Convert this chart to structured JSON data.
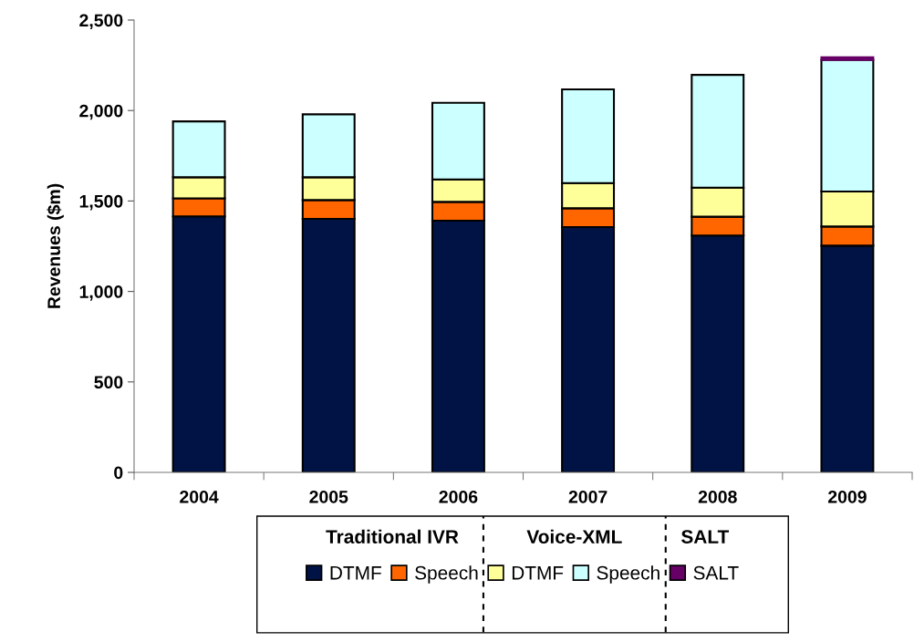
{
  "chart_data": {
    "type": "bar",
    "stacked": true,
    "ylabel": "Revenues ($m)",
    "categories": [
      "2004",
      "2005",
      "2006",
      "2007",
      "2008",
      "2009"
    ],
    "series": [
      {
        "name": "DTMF",
        "color": "#001344",
        "values": [
          1415,
          1401,
          1391,
          1356,
          1309,
          1253
        ]
      },
      {
        "name": "Speech",
        "color": "#ff6600",
        "values": [
          100,
          104,
          104,
          104,
          104,
          106
        ]
      },
      {
        "name": "DTMF",
        "color": "#ffff99",
        "values": [
          116,
          126,
          124,
          139,
          161,
          193
        ]
      },
      {
        "name": "Speech",
        "color": "#ccffff",
        "values": [
          309,
          348,
          424,
          518,
          623,
          728
        ]
      },
      {
        "name": "SALT",
        "color": "#660066",
        "values": [
          0,
          0,
          0,
          0,
          0,
          14
        ]
      }
    ],
    "ylim": [
      0,
      2500
    ],
    "yticks": [
      0,
      500,
      {
        "value": 1000,
        "label": "1,000"
      },
      {
        "value": 1500,
        "label": "1,500"
      },
      {
        "value": 2000,
        "label": "2,000"
      },
      {
        "value": 2500,
        "label": "2,500"
      }
    ],
    "grid": false,
    "legend": "bottom",
    "annotations": [
      "Traditional IVR",
      "Voice-XML",
      "SALT"
    ]
  }
}
